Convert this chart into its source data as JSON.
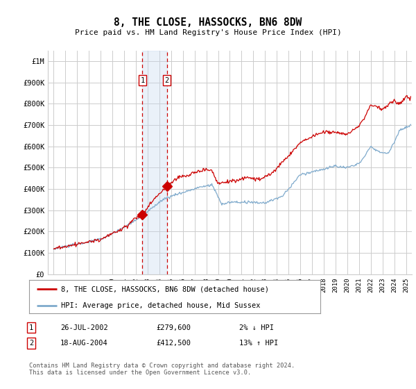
{
  "title": "8, THE CLOSE, HASSOCKS, BN6 8DW",
  "subtitle": "Price paid vs. HM Land Registry's House Price Index (HPI)",
  "ylabel_ticks": [
    "£0",
    "£100K",
    "£200K",
    "£300K",
    "£400K",
    "£500K",
    "£600K",
    "£700K",
    "£800K",
    "£900K",
    "£1M"
  ],
  "ytick_values": [
    0,
    100000,
    200000,
    300000,
    400000,
    500000,
    600000,
    700000,
    800000,
    900000,
    1000000
  ],
  "ylim": [
    0,
    1050000
  ],
  "xlim_start": 1994.5,
  "xlim_end": 2025.5,
  "transaction1_date": 2002.56,
  "transaction1_price": 279600,
  "transaction2_date": 2004.63,
  "transaction2_price": 412500,
  "transaction1_label": "26-JUL-2002",
  "transaction1_amount": "£279,600",
  "transaction1_hpi": "2% ↓ HPI",
  "transaction2_label": "18-AUG-2004",
  "transaction2_amount": "£412,500",
  "transaction2_hpi": "13% ↑ HPI",
  "legend_line1": "8, THE CLOSE, HASSOCKS, BN6 8DW (detached house)",
  "legend_line2": "HPI: Average price, detached house, Mid Sussex",
  "footer": "Contains HM Land Registry data © Crown copyright and database right 2024.\nThis data is licensed under the Open Government Licence v3.0.",
  "line_color_red": "#cc0000",
  "line_color_blue": "#7faacc",
  "background_plot": "#ffffff",
  "background_fig": "#ffffff",
  "grid_color": "#cccccc",
  "shade_color": "#c5d8ee"
}
